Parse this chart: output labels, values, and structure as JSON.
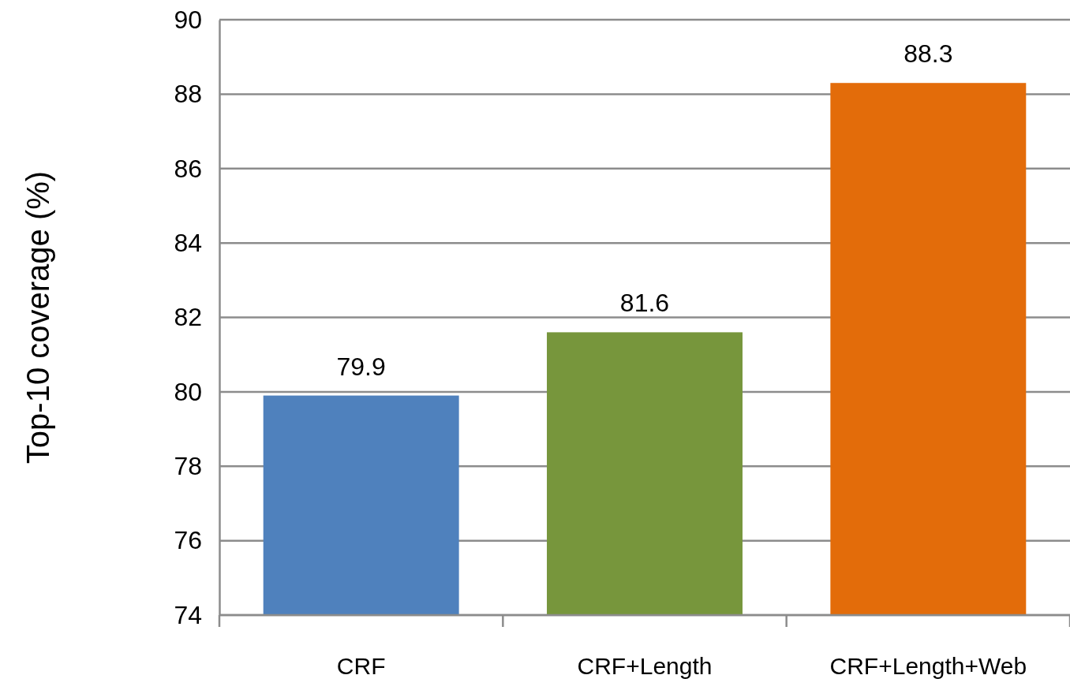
{
  "chart_data": {
    "type": "bar",
    "ylabel": "Top-10 coverage (%)",
    "categories": [
      "CRF",
      "CRF+Length",
      "CRF+Length+Web"
    ],
    "values": [
      79.9,
      81.6,
      88.3
    ],
    "colors": [
      "#4f81bd",
      "#77963c",
      "#e36c0a"
    ],
    "ylim": [
      74,
      90
    ],
    "yticks": [
      74,
      76,
      78,
      80,
      82,
      84,
      86,
      88,
      90
    ],
    "grid": "y",
    "data_labels": true
  }
}
